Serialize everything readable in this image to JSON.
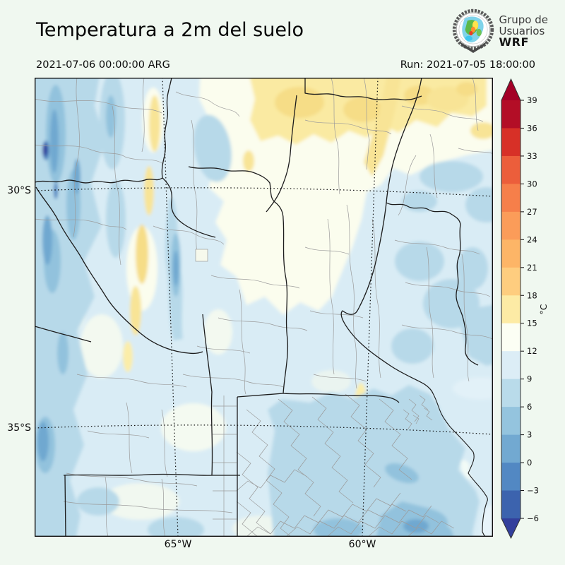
{
  "header": {
    "title": "Temperatura a 2m del suelo",
    "valid_time": "2021-07-06 00:00:00 ARG",
    "run_label": "Run: 2021-07-05 18:00:00",
    "logo": {
      "line1": "Grupo de",
      "line2": "Usuarios",
      "line3": "WRF"
    }
  },
  "axes": {
    "y_ticks": [
      {
        "label": "30°S"
      },
      {
        "label": "35°S"
      }
    ],
    "x_ticks": [
      {
        "label": "65°W"
      },
      {
        "label": "60°W"
      }
    ]
  },
  "colorbar": {
    "unit": "°C",
    "tick_labels": [
      "39",
      "36",
      "33",
      "30",
      "27",
      "24",
      "21",
      "18",
      "15",
      "12",
      "9",
      "6",
      "3",
      "0",
      "−3",
      "−6"
    ],
    "tick_values": [
      39,
      36,
      33,
      30,
      27,
      24,
      21,
      18,
      15,
      12,
      9,
      6,
      3,
      0,
      -3,
      -6
    ],
    "extend": "both",
    "extend_over_color": "#a30026",
    "extend_under_color": "#333f9c",
    "segment_colors": [
      "#b30e26",
      "#d73027",
      "#ec5e3b",
      "#f67f4a",
      "#fb9c59",
      "#fdb567",
      "#fecd7f",
      "#fdeba5",
      "#fcfef4",
      "#dcedf6",
      "#b9dbea",
      "#94c4de",
      "#72a9d1",
      "#5288c3",
      "#3c63ae"
    ]
  }
}
